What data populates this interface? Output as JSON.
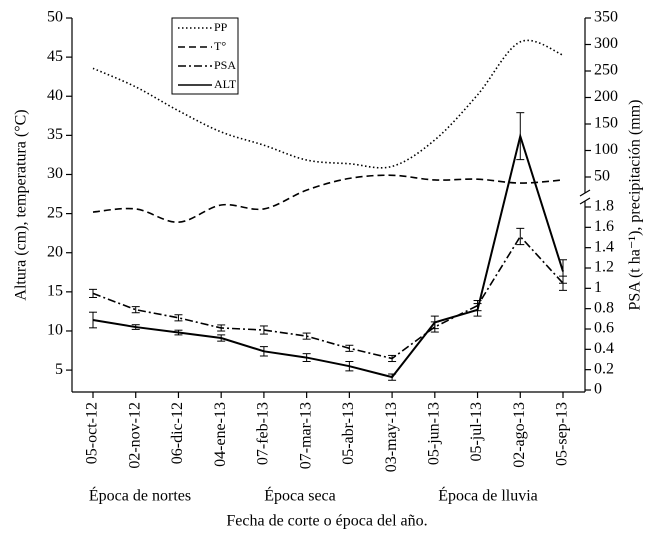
{
  "chart_data": {
    "type": "line",
    "xlabel": "Fecha de corte o época del año.",
    "ylabel": "Altura (cm), temperatura (°C)",
    "y2label": "PSA (t ha⁻¹), precipitación (mm)",
    "categories": [
      "05-oct-12",
      "02-nov-12",
      "06-dic-12",
      "04-ene-13",
      "07-feb-13",
      "07-mar-13",
      "05-abr-13",
      "03-may-13",
      "05-jun-13",
      "05-jul-13",
      "02-ago-13",
      "05-sep-13"
    ],
    "ylim": [
      2.2,
      50
    ],
    "yticks": [
      5,
      10,
      15,
      20,
      25,
      30,
      35,
      40,
      45,
      50
    ],
    "y2lim": [
      0,
      1.8
    ],
    "y2ticks": [
      0,
      0.2,
      0.4,
      0.6,
      0.8,
      1,
      1.2,
      1.4,
      1.6,
      1.8
    ],
    "y2_upper_lim": [
      50,
      350
    ],
    "y2_upper_ticks": [
      50,
      100,
      150,
      200,
      250,
      300,
      350
    ],
    "series": [
      {
        "name": "PP",
        "color": "#000000",
        "style": "dotted",
        "smooth": true,
        "axis": "y2_upper",
        "values": [
          255,
          220,
          175,
          135,
          110,
          82,
          75,
          70,
          120,
          205,
          305,
          280
        ]
      },
      {
        "name": "T°",
        "color": "#000000",
        "style": "dashed",
        "smooth": true,
        "axis": "y",
        "values": [
          25.2,
          25.6,
          23.9,
          26.1,
          25.6,
          28,
          29.5,
          29.9,
          29.3,
          29.4,
          28.9,
          29.3
        ]
      },
      {
        "name": "PSA",
        "color": "#000000",
        "style": "dashdot",
        "smooth": false,
        "axis": "y2",
        "values": [
          0.95,
          0.79,
          0.71,
          0.61,
          0.59,
          0.53,
          0.41,
          0.31,
          0.62,
          0.83,
          1.51,
          1.05
        ],
        "errors": [
          0.04,
          0.03,
          0.03,
          0.03,
          0.04,
          0.03,
          0.03,
          0.03,
          0.05,
          0.05,
          0.08,
          0.07
        ]
      },
      {
        "name": "ALT",
        "color": "#000000",
        "style": "solid",
        "smooth": false,
        "axis": "y",
        "values": [
          11.4,
          10.5,
          9.8,
          9.1,
          7.4,
          6.6,
          5.5,
          4.1,
          11.1,
          12.7,
          34.9,
          17.6
        ],
        "errors": [
          1.0,
          0.3,
          0.3,
          0.4,
          0.6,
          0.5,
          0.6,
          0.4,
          0.8,
          0.8,
          3.0,
          1.5
        ]
      }
    ],
    "annotations": [
      "Época de nortes",
      "Época seca",
      "Época de lluvia"
    ],
    "legend": "upper-left"
  }
}
